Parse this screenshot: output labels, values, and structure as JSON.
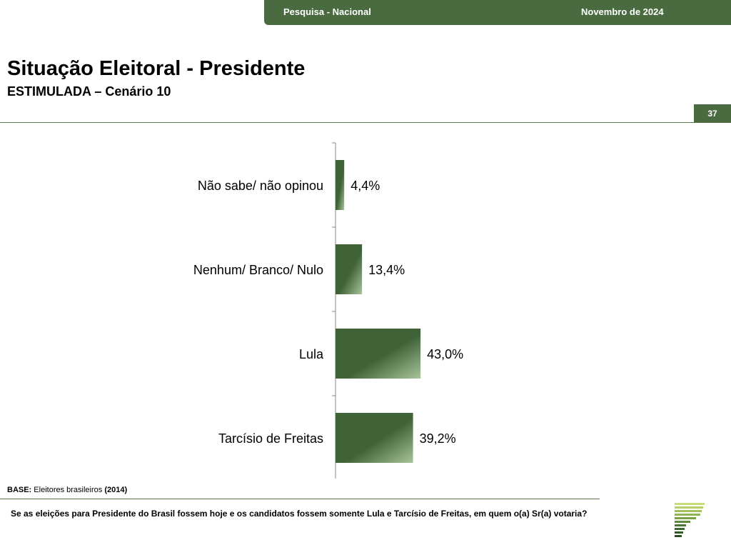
{
  "header": {
    "survey": "Pesquisa - Nacional",
    "date": "Novembro de 2024"
  },
  "title": "Situação Eleitoral - Presidente",
  "subtitle": "ESTIMULADA – Cenário 10",
  "page_number": "37",
  "base": {
    "label": "BASE:",
    "text": "Eleitores brasileiros",
    "count": "(2014)"
  },
  "question": "Se as eleições para Presidente do Brasil fossem hoje e os candidatos fossem somente Lula e Tarcísio de Freitas, em quem o(a) Sr(a) votaria?",
  "colors": {
    "brand": "#4a6b3f",
    "bar_dark": "#3f6337",
    "bar_light": "#a8c49a"
  },
  "logo": "stacked-green-bars-logo",
  "chart_data": {
    "type": "bar",
    "orientation": "horizontal",
    "categories": [
      "Não sabe/ não opinou",
      "Nenhum/ Branco/ Nulo",
      "Lula",
      "Tarcísio de Freitas"
    ],
    "values": [
      4.4,
      13.4,
      43.0,
      39.2
    ],
    "value_labels": [
      "4,4%",
      "13,4%",
      "43,0%",
      "39,2%"
    ],
    "unit": "%",
    "title": "",
    "xlabel": "",
    "ylabel": "",
    "grid": false,
    "legend": "none"
  }
}
